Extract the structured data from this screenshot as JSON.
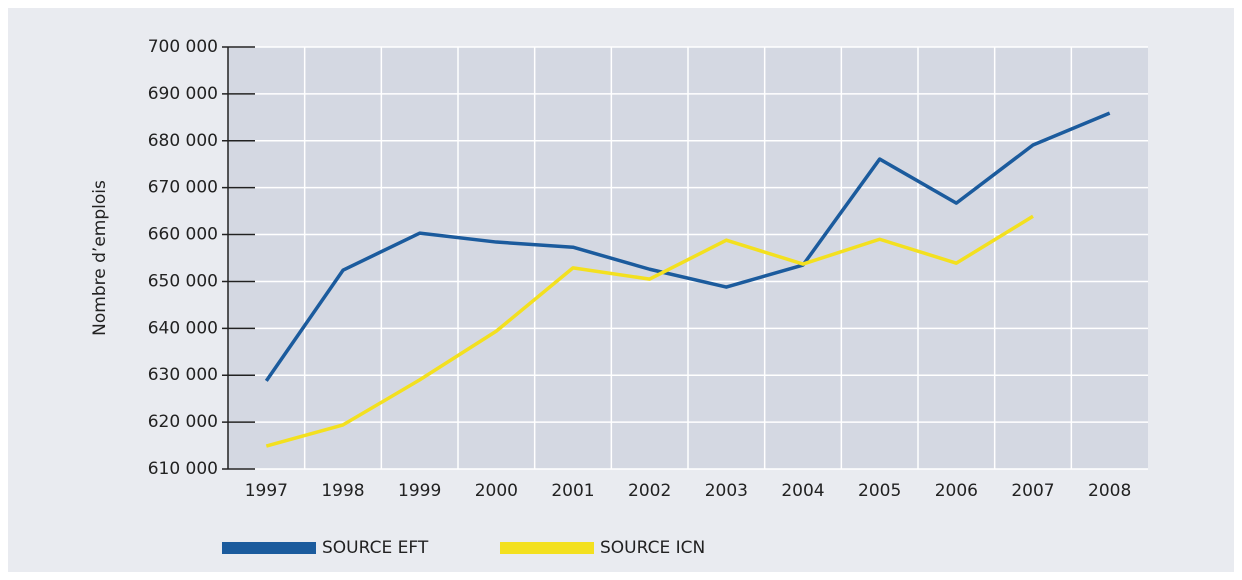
{
  "chart_data": {
    "type": "line",
    "y_label": "Nombre d’emplois",
    "categories": [
      "1997",
      "1998",
      "1999",
      "2000",
      "2001",
      "2002",
      "2003",
      "2004",
      "2005",
      "2006",
      "2007",
      "2008"
    ],
    "series": [
      {
        "name": "SOURCE EFT",
        "color": "#1b5b9d",
        "values": [
          628800,
          652400,
          660300,
          658400,
          657300,
          652600,
          648800,
          653500,
          676100,
          666700,
          679100,
          685900
        ]
      },
      {
        "name": "SOURCE ICN",
        "color": "#f3e01f",
        "values": [
          614900,
          619400,
          629000,
          639400,
          652900,
          650500,
          658800,
          653700,
          659000,
          653900,
          663900,
          null
        ]
      }
    ],
    "ylim": [
      610000,
      700000
    ],
    "yticks": [
      {
        "value": 610000,
        "label": "610 000"
      },
      {
        "value": 620000,
        "label": "620 000"
      },
      {
        "value": 630000,
        "label": "630 000"
      },
      {
        "value": 640000,
        "label": "640 000"
      },
      {
        "value": 650000,
        "label": "650 000"
      },
      {
        "value": 660000,
        "label": "660 000"
      },
      {
        "value": 670000,
        "label": "670 000"
      },
      {
        "value": 680000,
        "label": "680 000"
      },
      {
        "value": 690000,
        "label": "690 000"
      },
      {
        "value": 700000,
        "label": "700 000"
      }
    ],
    "grid": true,
    "legend": "bottom"
  }
}
